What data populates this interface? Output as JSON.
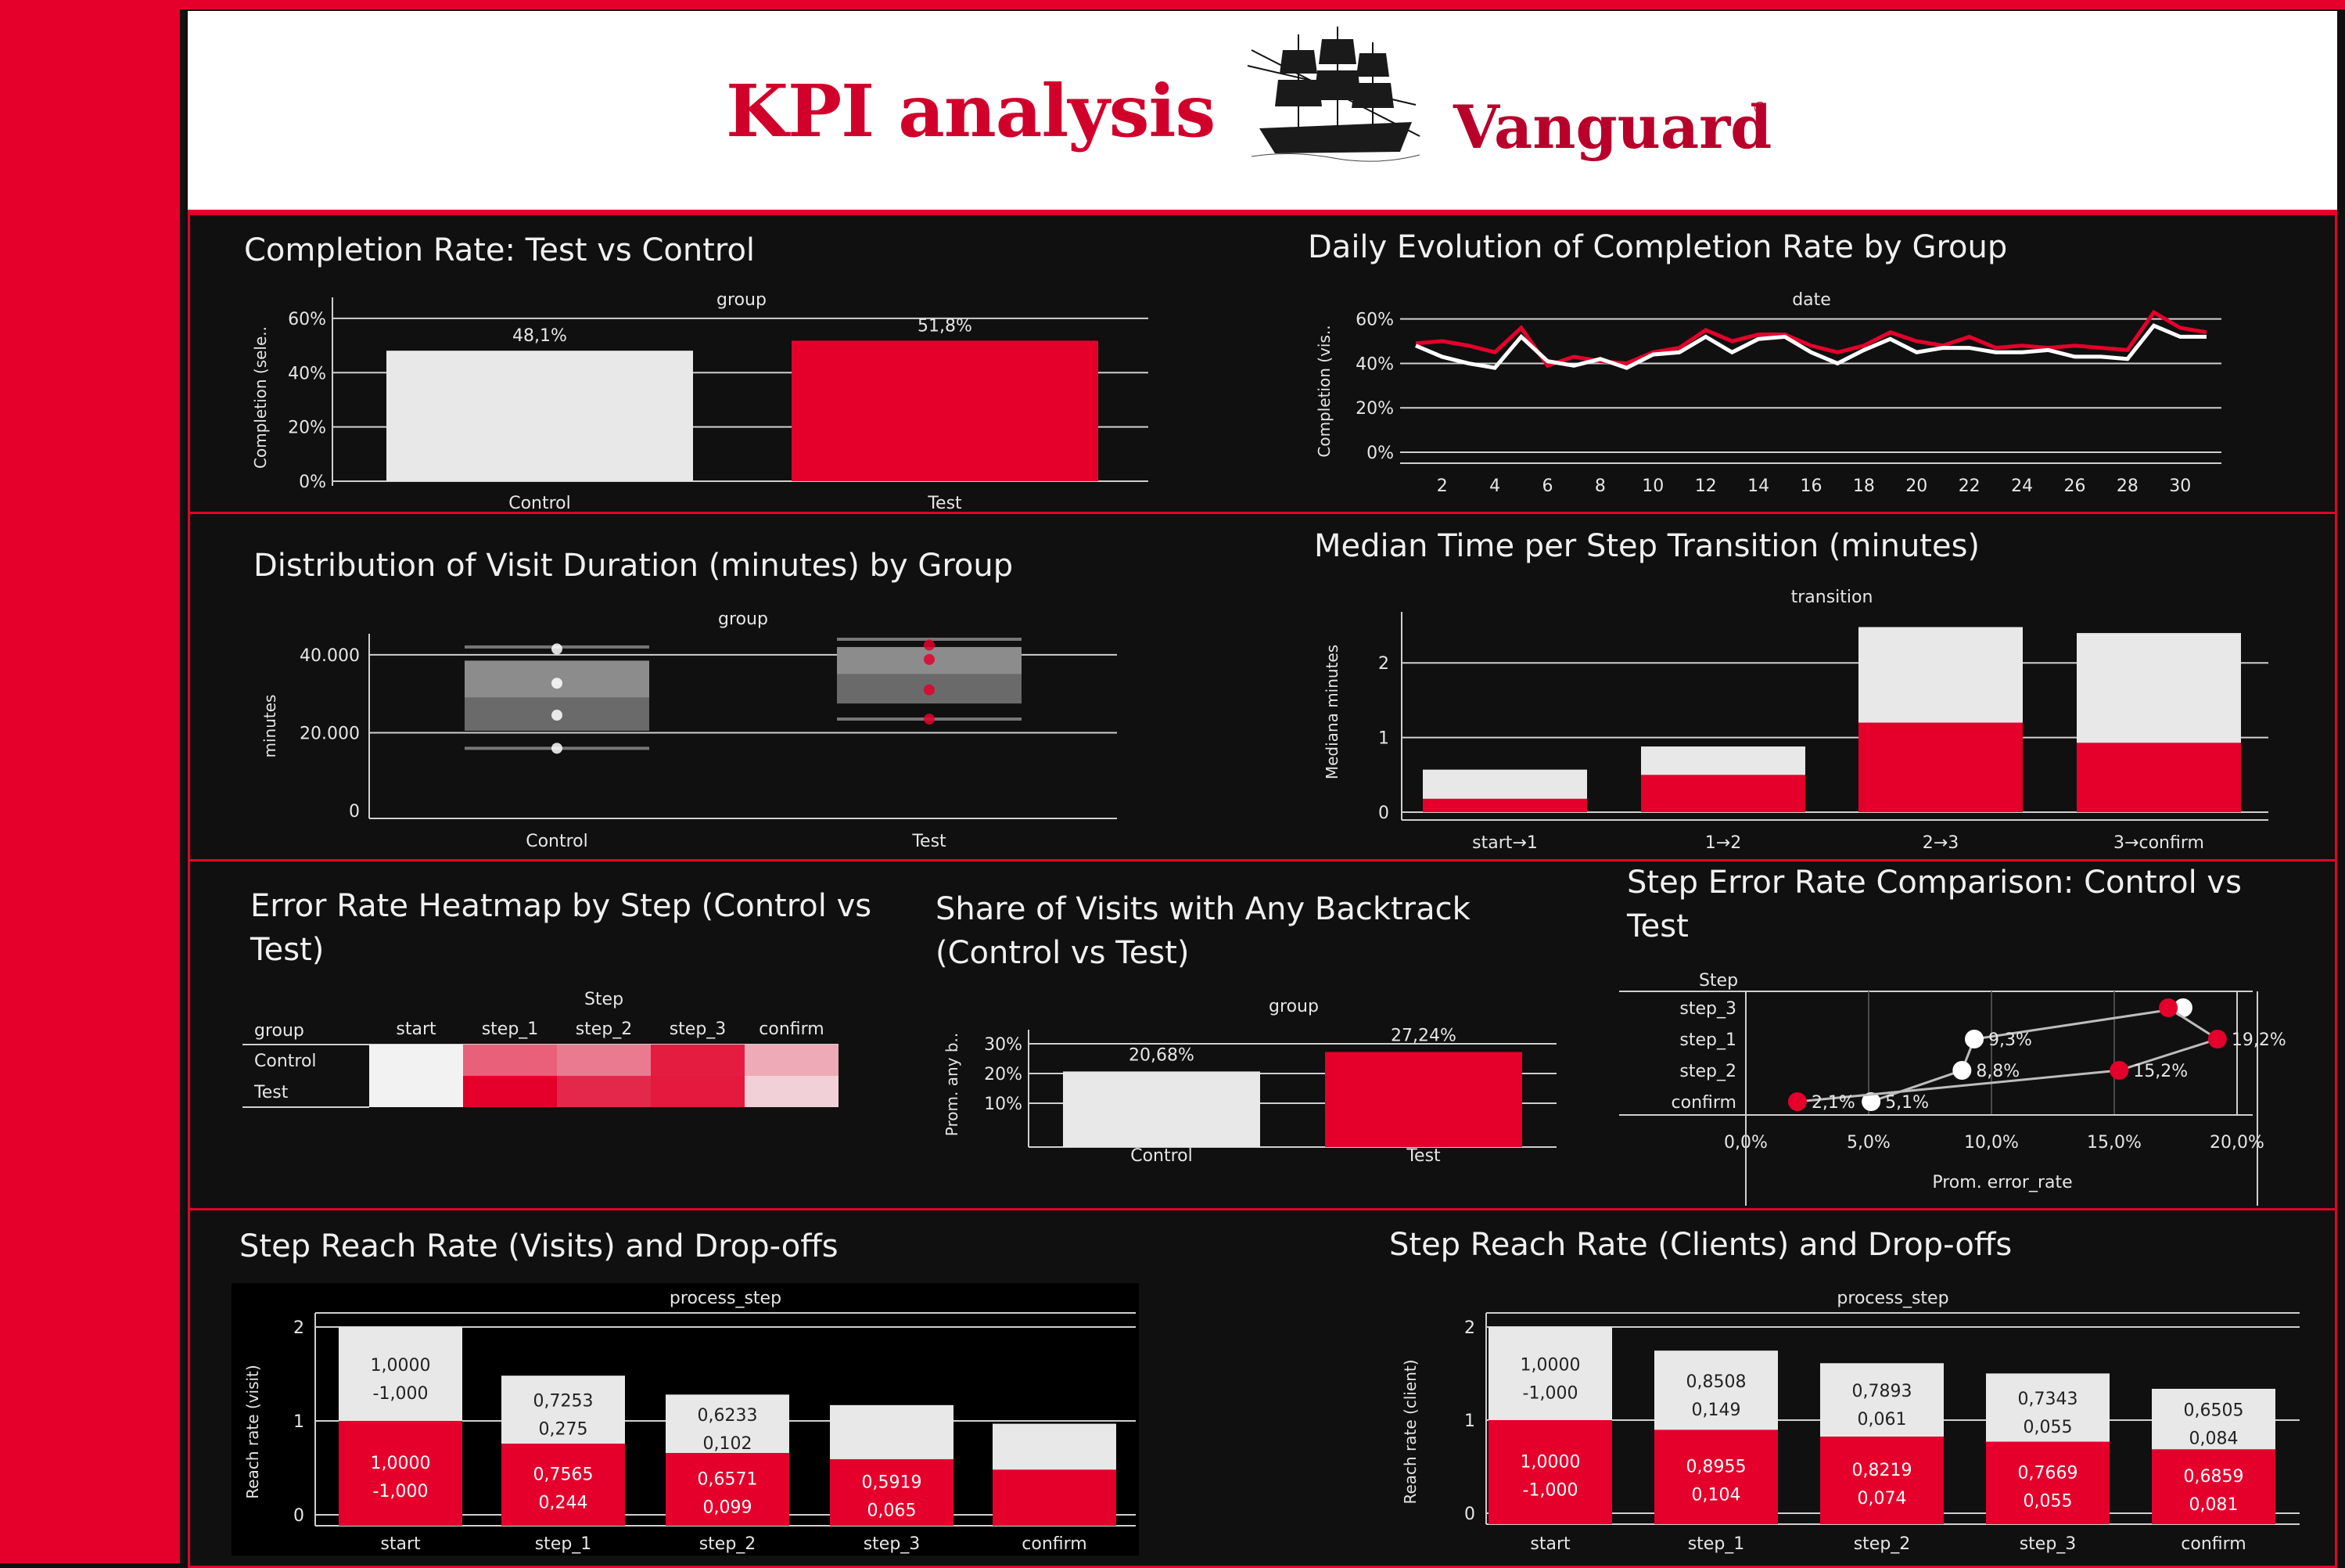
{
  "header": {
    "title": "KPI analysis",
    "brand": "Vanguard",
    "brand_mark": "®",
    "ship_icon": "sailing-ship-icon"
  },
  "colors": {
    "test": "#e4002b",
    "control": "#e8e8e8",
    "panel_border": "#e4002b",
    "background": "#101010"
  },
  "panels": {
    "completion": {
      "title": "Completion Rate: Test vs Control"
    },
    "daily": {
      "title": "Daily Evolution of Completion Rate by Group"
    },
    "duration": {
      "title": "Distribution of Visit Duration (minutes) by Group"
    },
    "median": {
      "title": "Median Time per Step Transition (minutes)"
    },
    "heatmap": {
      "title": "Error Rate Heatmap by Step (Control vs Test)"
    },
    "backtrack": {
      "title": "Share of Visits with Any Backtrack (Control vs Test)"
    },
    "steperr": {
      "title": "Step Error Rate Comparison: Control vs Test"
    },
    "reach_visits": {
      "title": "Step Reach Rate (Visits) and Drop-offs"
    },
    "reach_clients": {
      "title": "Step Reach Rate (Clients) and Drop-offs"
    }
  },
  "chart_data": [
    {
      "id": "completion",
      "type": "bar",
      "header": "group",
      "ylabel": "Completion (sele..",
      "categories": [
        "Control",
        "Test"
      ],
      "values": [
        48.1,
        51.8
      ],
      "labels": [
        "48,1%",
        "51,8%"
      ],
      "yticks": [
        "0%",
        "20%",
        "40%",
        "60%"
      ],
      "ylim": [
        0,
        62
      ]
    },
    {
      "id": "daily",
      "type": "line",
      "header": "date",
      "ylabel": "Completion (vis..",
      "x": [
        1,
        2,
        3,
        4,
        5,
        6,
        7,
        8,
        9,
        10,
        11,
        12,
        13,
        14,
        15,
        16,
        17,
        18,
        19,
        20,
        21,
        22,
        23,
        24,
        25,
        26,
        27,
        28,
        29,
        30,
        31
      ],
      "xticks": [
        "2",
        "4",
        "6",
        "8",
        "10",
        "12",
        "14",
        "16",
        "18",
        "20",
        "22",
        "24",
        "26",
        "28",
        "30"
      ],
      "yticks": [
        "0%",
        "20%",
        "40%",
        "60%"
      ],
      "ylim": [
        0,
        62
      ],
      "series": [
        {
          "name": "Test",
          "values": [
            49,
            50,
            48,
            45,
            56,
            39,
            43,
            41,
            40,
            45,
            47,
            55,
            50,
            53,
            53,
            48,
            45,
            48,
            54,
            50,
            48,
            52,
            47,
            48,
            47,
            48,
            47,
            46,
            63,
            56,
            54
          ]
        },
        {
          "name": "Control",
          "values": [
            48,
            43,
            40,
            38,
            52,
            41,
            39,
            42,
            38,
            44,
            45,
            52,
            45,
            51,
            52,
            45,
            40,
            46,
            51,
            45,
            47,
            47,
            45,
            45,
            46,
            43,
            43,
            42,
            57,
            52,
            52
          ]
        }
      ]
    },
    {
      "id": "duration",
      "type": "box",
      "header": "group",
      "ylabel": "minutes",
      "categories": [
        "Control",
        "Test"
      ],
      "yticks": [
        "0",
        "20.000",
        "40.000"
      ],
      "ylim": [
        0,
        45000
      ],
      "boxes": [
        {
          "name": "Control",
          "whisker_low": 16000,
          "q1": 20500,
          "median": 29000,
          "q3": 38500,
          "whisker_high": 42000,
          "points": [
            16000,
            24500,
            32700,
            41500
          ]
        },
        {
          "name": "Test",
          "whisker_low": 23500,
          "q1": 27500,
          "median": 35000,
          "q3": 42000,
          "whisker_high": 44000,
          "points": [
            23500,
            31000,
            38800,
            42500
          ]
        }
      ]
    },
    {
      "id": "median",
      "type": "bar",
      "header": "transition",
      "ylabel": "Mediana minutes",
      "categories": [
        "start→1",
        "1→2",
        "2→3",
        "3→confirm"
      ],
      "yticks": [
        "0",
        "1",
        "2"
      ],
      "ylim": [
        0,
        2.6
      ],
      "series": [
        {
          "name": "Test",
          "values": [
            0.18,
            0.5,
            1.2,
            0.93
          ]
        },
        {
          "name": "Control",
          "values": [
            0.57,
            0.88,
            2.48,
            2.4
          ]
        }
      ]
    },
    {
      "id": "heatmap",
      "type": "heatmap",
      "header": "Step",
      "row_header": "group",
      "columns": [
        "start",
        "step_1",
        "step_2",
        "step_3",
        "confirm"
      ],
      "rows": [
        "Control",
        "Test"
      ],
      "colors": [
        [
          "#f2f2f2",
          "#e8607a",
          "#ea7a8f",
          "#e41c40",
          "#efaab8"
        ],
        [
          "#f2f2f2",
          "#e4002b",
          "#e4284b",
          "#e4193d",
          "#f2d0d7"
        ]
      ]
    },
    {
      "id": "backtrack",
      "type": "bar",
      "header": "group",
      "ylabel": "Prom. any b..",
      "categories": [
        "Control",
        "Test"
      ],
      "values": [
        20.68,
        27.24
      ],
      "labels": [
        "20,68%",
        "27,24%"
      ],
      "yticks": [
        "10%",
        "20%",
        "30%"
      ],
      "ylim": [
        0,
        30
      ]
    },
    {
      "id": "steperr",
      "type": "scatter",
      "header": "Step",
      "xlabel": "Prom. error_rate",
      "steps": [
        "step_3",
        "step_1",
        "step_2",
        "confirm"
      ],
      "xticks": [
        "0,0%",
        "5,0%",
        "10,0%",
        "15,0%",
        "20,0%"
      ],
      "xlim": [
        0,
        20
      ],
      "series": [
        {
          "name": "Control",
          "values": [
            17.8,
            9.3,
            8.8,
            5.1
          ],
          "labels": [
            "",
            "9,3%",
            "8,8%",
            "5,1%"
          ]
        },
        {
          "name": "Test",
          "values": [
            17.2,
            19.2,
            15.2,
            2.1
          ],
          "labels": [
            "",
            "19,2%",
            "15,2%",
            "2,1%"
          ]
        }
      ]
    },
    {
      "id": "reach_visits",
      "type": "bar",
      "header": "process_step",
      "ylabel": "Reach rate (visit)",
      "categories": [
        "start",
        "step_1",
        "step_2",
        "step_3",
        "confirm"
      ],
      "yticks": [
        "0",
        "1",
        "2"
      ],
      "ylim": [
        0,
        2
      ],
      "series": [
        {
          "name": "Test",
          "values": [
            1.0,
            0.7565,
            0.6571,
            0.5919,
            0.48
          ],
          "labels": [
            "1,0000",
            "0,7565",
            "0,6571",
            "0,5919",
            ""
          ],
          "sub": [
            "-1,000",
            "0,244",
            "0,099",
            "0,065",
            ""
          ]
        },
        {
          "name": "Control",
          "values": [
            1.0,
            0.7253,
            0.6233,
            0.5763,
            0.49
          ],
          "labels": [
            "1,0000",
            "0,7253",
            "0,6233",
            "",
            ""
          ],
          "sub": [
            "-1,000",
            "0,275",
            "0,102",
            "",
            ""
          ]
        }
      ]
    },
    {
      "id": "reach_clients",
      "type": "bar",
      "header": "process_step",
      "ylabel": "Reach rate (client)",
      "categories": [
        "start",
        "step_1",
        "step_2",
        "step_3",
        "confirm"
      ],
      "yticks": [
        "0",
        "1",
        "2"
      ],
      "ylim": [
        0,
        2
      ],
      "series": [
        {
          "name": "Test",
          "values": [
            1.0,
            0.8955,
            0.8219,
            0.7669,
            0.6859
          ],
          "labels": [
            "1,0000",
            "0,8955",
            "0,8219",
            "0,7669",
            "0,6859"
          ],
          "sub": [
            "-1,000",
            "0,104",
            "0,074",
            "0,055",
            "0,081"
          ]
        },
        {
          "name": "Control",
          "values": [
            1.0,
            0.8508,
            0.7893,
            0.7343,
            0.6505
          ],
          "labels": [
            "1,0000",
            "0,8508",
            "0,7893",
            "0,7343",
            "0,6505"
          ],
          "sub": [
            "-1,000",
            "0,149",
            "0,061",
            "0,055",
            "0,084"
          ]
        }
      ]
    }
  ]
}
